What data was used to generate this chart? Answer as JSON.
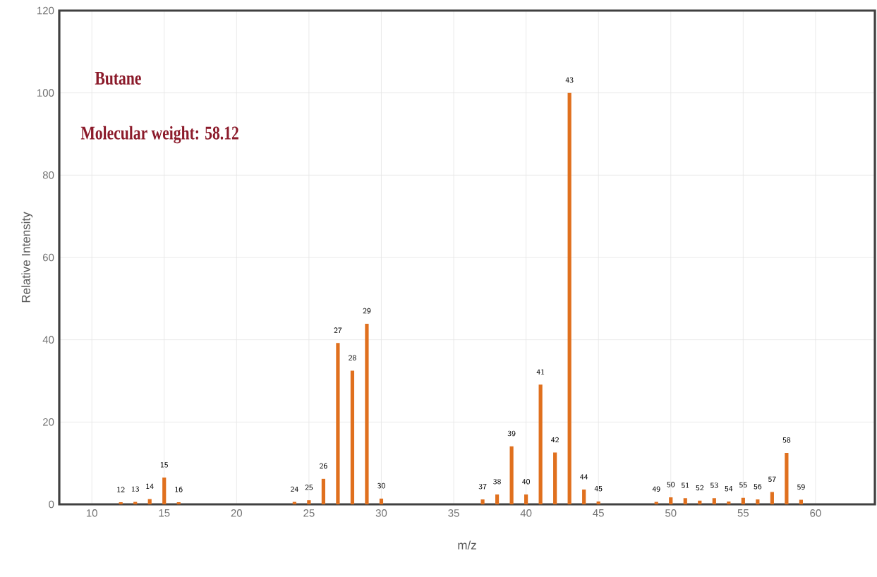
{
  "chart_data": {
    "type": "bar",
    "xlabel": "m/z",
    "ylabel": "Relative Intensity",
    "annotations": [
      "Butane",
      "Molecular weight: 58.12",
      {
        "text": "12",
        "x": 12,
        "y": 0.5
      },
      {
        "text": "13",
        "x": 13,
        "y": 0.6
      },
      {
        "text": "14",
        "x": 14,
        "y": 1.3
      },
      {
        "text": "15",
        "x": 15,
        "y": 6.5
      },
      {
        "text": "16",
        "x": 16,
        "y": 0.5
      },
      {
        "text": "24",
        "x": 24,
        "y": 0.6
      },
      {
        "text": "25",
        "x": 25,
        "y": 1.0
      },
      {
        "text": "26",
        "x": 26,
        "y": 6.2
      },
      {
        "text": "27",
        "x": 27,
        "y": 39.2
      },
      {
        "text": "28",
        "x": 28,
        "y": 32.5
      },
      {
        "text": "29",
        "x": 29,
        "y": 43.9
      },
      {
        "text": "30",
        "x": 30,
        "y": 1.4
      },
      {
        "text": "37",
        "x": 37,
        "y": 1.2
      },
      {
        "text": "38",
        "x": 38,
        "y": 2.4
      },
      {
        "text": "39",
        "x": 39,
        "y": 14.1
      },
      {
        "text": "40",
        "x": 40,
        "y": 2.4
      },
      {
        "text": "41",
        "x": 41,
        "y": 29.1
      },
      {
        "text": "42",
        "x": 42,
        "y": 12.6
      },
      {
        "text": "43",
        "x": 43,
        "y": 100
      },
      {
        "text": "44",
        "x": 44,
        "y": 3.6
      },
      {
        "text": "45",
        "x": 45,
        "y": 0.7
      },
      {
        "text": "49",
        "x": 49,
        "y": 0.6
      },
      {
        "text": "50",
        "x": 50,
        "y": 1.7
      },
      {
        "text": "51",
        "x": 51,
        "y": 1.5
      },
      {
        "text": "52",
        "x": 52,
        "y": 0.9
      },
      {
        "text": "53",
        "x": 53,
        "y": 1.5
      },
      {
        "text": "54",
        "x": 54,
        "y": 0.7
      },
      {
        "text": "55",
        "x": 55,
        "y": 1.6
      },
      {
        "text": "56",
        "x": 56,
        "y": 1.2
      },
      {
        "text": "57",
        "x": 57,
        "y": 3.0
      },
      {
        "text": "58",
        "x": 58,
        "y": 12.5
      },
      {
        "text": "59",
        "x": 59,
        "y": 1.1
      }
    ],
    "x": [
      12,
      13,
      14,
      15,
      16,
      24,
      25,
      26,
      27,
      28,
      29,
      30,
      37,
      38,
      39,
      40,
      41,
      42,
      43,
      44,
      45,
      49,
      50,
      51,
      52,
      53,
      54,
      55,
      56,
      57,
      58,
      59
    ],
    "values": [
      0.5,
      0.6,
      1.3,
      6.5,
      0.5,
      0.6,
      1.0,
      6.2,
      39.2,
      32.5,
      43.9,
      1.4,
      1.2,
      2.4,
      14.1,
      2.4,
      29.1,
      12.6,
      100,
      3.6,
      0.7,
      0.6,
      1.7,
      1.5,
      0.9,
      1.5,
      0.7,
      1.6,
      1.2,
      3.0,
      12.5,
      1.1
    ],
    "color": "#e0701e",
    "xlim": [
      7.75,
      64.1
    ],
    "ylim": [
      0,
      120
    ],
    "xticks": [
      10,
      15,
      20,
      25,
      30,
      35,
      40,
      45,
      50,
      55,
      60
    ],
    "yticks": [
      0,
      20,
      40,
      60,
      80,
      100,
      120
    ],
    "grid": true
  }
}
